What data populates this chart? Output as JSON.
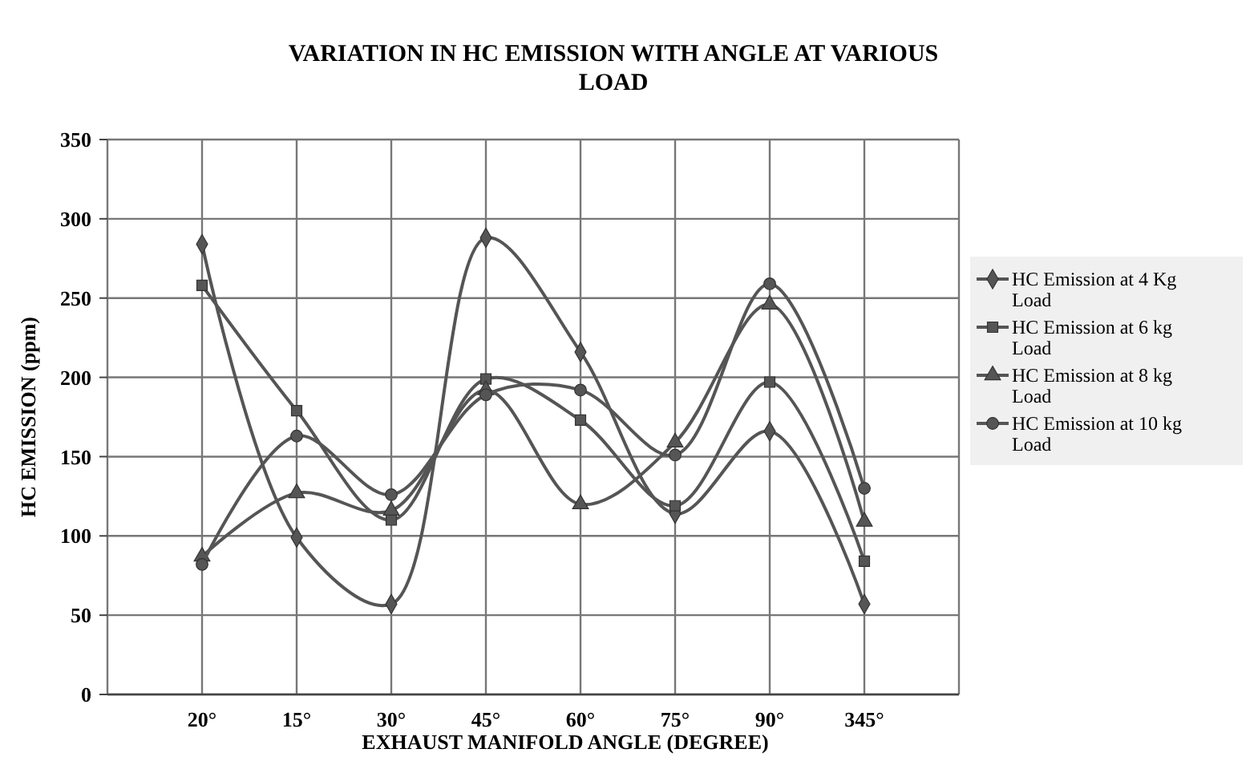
{
  "chart_data": {
    "type": "line",
    "title": "VARIATION IN HC EMISSION WITH ANGLE AT VARIOUS LOAD",
    "xlabel": "EXHAUST MANIFOLD ANGLE (DEGREE)",
    "ylabel": "HC EMISSION (ppm)",
    "categories": [
      "20°",
      "15°",
      "30°",
      "45°",
      "60°",
      "75°",
      "90°",
      "345°"
    ],
    "ylim": [
      0,
      350
    ],
    "yticks": [
      0,
      50,
      100,
      150,
      200,
      250,
      300,
      350
    ],
    "grid": true,
    "legend": "right",
    "series": [
      {
        "name": "HC Emission at 4 Kg Load",
        "color": "#555555",
        "marker": "diamond",
        "values": [
          284,
          99,
          57,
          288,
          216,
          114,
          166,
          57
        ]
      },
      {
        "name": "HC Emission at 6 kg Load",
        "color": "#555555",
        "marker": "square",
        "values": [
          258,
          179,
          110,
          199,
          173,
          119,
          197,
          84
        ]
      },
      {
        "name": "HC Emission at 8 kg Load",
        "color": "#555555",
        "marker": "triangle",
        "values": [
          87,
          127,
          116,
          192,
          120,
          159,
          246,
          109
        ]
      },
      {
        "name": "HC Emission at 10 kg Load",
        "color": "#555555",
        "marker": "circle",
        "values": [
          82,
          163,
          126,
          189,
          192,
          151,
          259,
          130
        ]
      }
    ]
  }
}
